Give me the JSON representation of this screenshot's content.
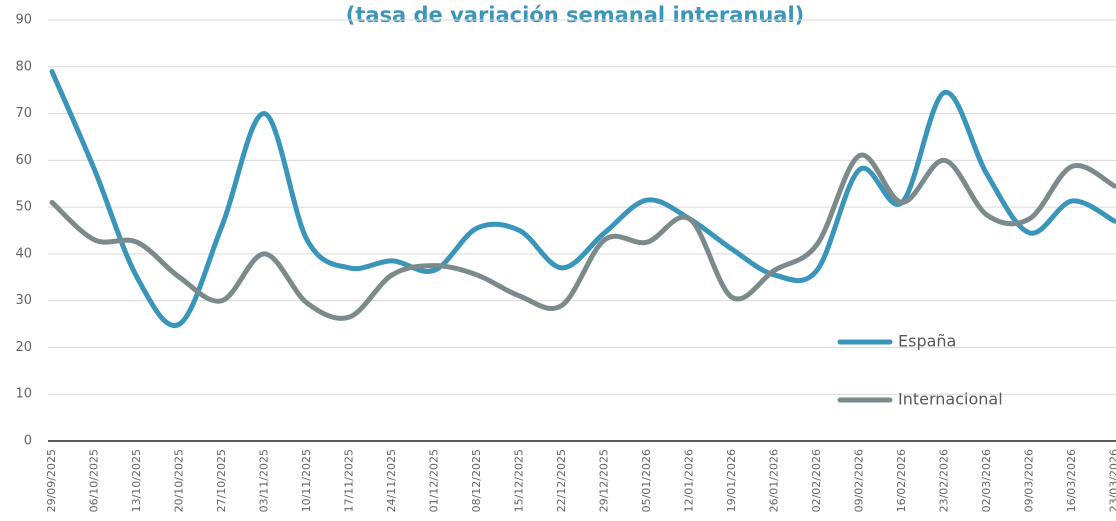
{
  "chart_data": {
    "type": "line",
    "title": "(tasa de variación semanal interanual)",
    "categories": [
      "29/09/2025",
      "06/10/2025",
      "13/10/2025",
      "20/10/2025",
      "27/10/2025",
      "03/11/2025",
      "10/11/2025",
      "17/11/2025",
      "24/11/2025",
      "01/12/2025",
      "08/12/2025",
      "15/12/2025",
      "22/12/2025",
      "29/12/2025",
      "05/01/2026",
      "12/01/2026",
      "19/01/2026",
      "26/01/2026",
      "02/02/2026",
      "09/02/2026",
      "16/02/2026",
      "23/02/2026",
      "02/03/2026",
      "09/03/2026",
      "16/03/2026",
      "23/03/2026"
    ],
    "series": [
      {
        "name": "España",
        "color": "#3a95bb",
        "values": [
          79,
          58,
          35,
          25,
          46,
          70,
          43,
          37,
          38.5,
          36.5,
          45.5,
          45,
          37,
          44.5,
          51.5,
          47.5,
          41,
          35.5,
          36.5,
          58,
          51,
          74.5,
          57,
          44.5,
          51.3,
          47
        ]
      },
      {
        "name": "Internacional",
        "color": "#7b8a8b",
        "values": [
          51,
          43,
          42.5,
          35,
          30,
          40,
          29.5,
          26.5,
          35.5,
          37.5,
          35.5,
          31,
          29,
          43,
          42.5,
          47.5,
          30.7,
          36.5,
          42,
          61,
          51,
          60,
          48.3,
          47.5,
          58.7,
          54.5
        ]
      }
    ],
    "ylim": [
      0,
      90
    ],
    "yticks": [
      0,
      10,
      20,
      30,
      40,
      50,
      60,
      70,
      80,
      90
    ],
    "grid": true,
    "legend": "lower right"
  }
}
